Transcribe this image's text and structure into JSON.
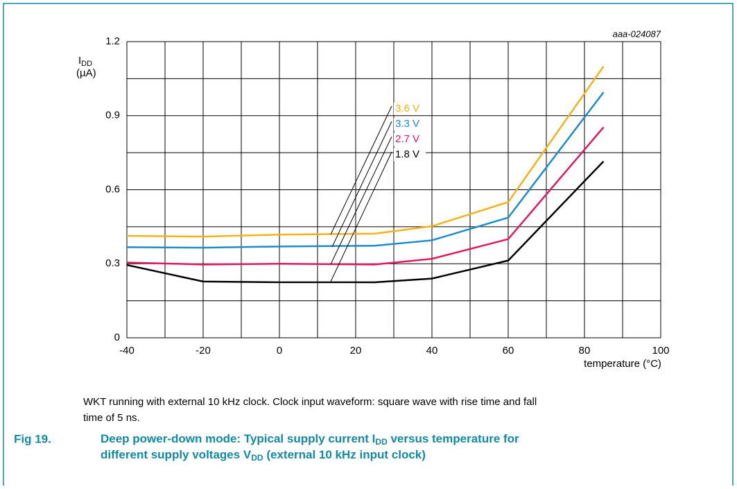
{
  "chart_data": {
    "type": "line",
    "id_label": "aaa-024087",
    "ylabel": {
      "main": "I",
      "sub": "DD",
      "unit": "(µA)"
    },
    "xlabel": "temperature (°C)",
    "x": [
      -40,
      -20,
      0,
      25,
      40,
      60,
      85
    ],
    "series": [
      {
        "name": "3.6 V",
        "color": "#f3b217",
        "values": [
          0.413,
          0.41,
          0.418,
          0.422,
          0.452,
          0.55,
          1.1
        ]
      },
      {
        "name": "3.3 V",
        "color": "#1c8bc6",
        "values": [
          0.367,
          0.365,
          0.37,
          0.373,
          0.395,
          0.487,
          0.995
        ]
      },
      {
        "name": "2.7 V",
        "color": "#e0195a",
        "values": [
          0.305,
          0.297,
          0.3,
          0.297,
          0.32,
          0.4,
          0.853
        ]
      },
      {
        "name": "1.8 V",
        "color": "#000000",
        "values": [
          0.295,
          0.228,
          0.225,
          0.225,
          0.24,
          0.313,
          0.715
        ]
      }
    ],
    "xlim": [
      -40,
      100
    ],
    "xticks": [
      -40,
      -20,
      0,
      20,
      40,
      60,
      80,
      100
    ],
    "xminor": [
      -30,
      -10,
      10,
      30,
      50,
      70,
      90
    ],
    "ylim": [
      0,
      1.2
    ],
    "yticks": [
      0,
      0.3,
      0.6,
      0.9,
      1.2
    ],
    "yminor": [
      0.15,
      0.45,
      0.75,
      1.05
    ],
    "grid": true,
    "note": [
      "WKT running with external 10 kHz clock. Clock input waveform: square wave with rise time and fall",
      "time of 5 ns."
    ],
    "fig_label": "Fig 19.",
    "title": [
      "Deep power-down mode: Typical supply current I",
      "DD",
      " versus temperature for",
      "different supply voltages V",
      "DD",
      " (external 10 kHz input clock)"
    ]
  }
}
